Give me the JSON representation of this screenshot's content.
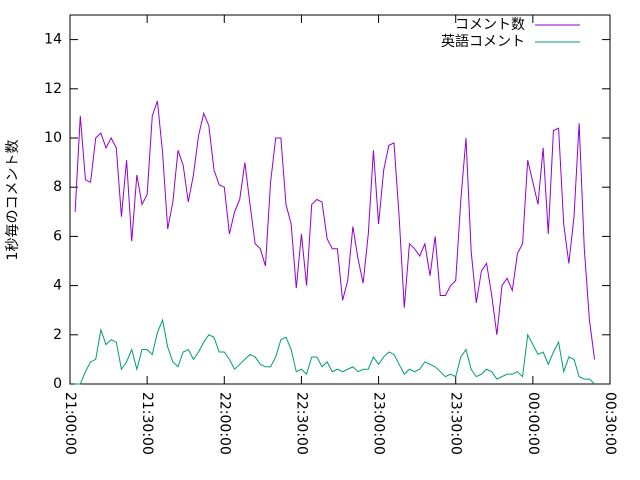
{
  "chart_data": {
    "type": "line",
    "ylabel": "1秒毎のコメント数",
    "x": [
      "21:02:00",
      "21:04:00",
      "21:06:00",
      "21:08:00",
      "21:10:00",
      "21:12:00",
      "21:14:00",
      "21:16:00",
      "21:18:00",
      "21:20:00",
      "21:22:00",
      "21:24:00",
      "21:26:00",
      "21:28:00",
      "21:30:00",
      "21:32:00",
      "21:34:00",
      "21:36:00",
      "21:38:00",
      "21:40:00",
      "21:42:00",
      "21:44:00",
      "21:46:00",
      "21:48:00",
      "21:50:00",
      "21:52:00",
      "21:54:00",
      "21:56:00",
      "21:58:00",
      "22:00:00",
      "22:02:00",
      "22:04:00",
      "22:06:00",
      "22:08:00",
      "22:10:00",
      "22:12:00",
      "22:14:00",
      "22:16:00",
      "22:18:00",
      "22:20:00",
      "22:22:00",
      "22:24:00",
      "22:26:00",
      "22:28:00",
      "22:30:00",
      "22:32:00",
      "22:34:00",
      "22:36:00",
      "22:38:00",
      "22:40:00",
      "22:42:00",
      "22:44:00",
      "22:46:00",
      "22:48:00",
      "22:50:00",
      "22:52:00",
      "22:54:00",
      "22:56:00",
      "22:58:00",
      "23:00:00",
      "23:02:00",
      "23:04:00",
      "23:06:00",
      "23:08:00",
      "23:10:00",
      "23:12:00",
      "23:14:00",
      "23:16:00",
      "23:18:00",
      "23:20:00",
      "23:22:00",
      "23:24:00",
      "23:26:00",
      "23:28:00",
      "23:30:00",
      "23:32:00",
      "23:34:00",
      "23:36:00",
      "23:38:00",
      "23:40:00",
      "23:42:00",
      "23:44:00",
      "23:46:00",
      "23:48:00",
      "23:50:00",
      "23:52:00",
      "23:54:00",
      "23:56:00",
      "23:58:00",
      "00:00:00",
      "00:02:00",
      "00:04:00",
      "00:06:00",
      "00:08:00",
      "00:10:00",
      "00:12:00",
      "00:14:00",
      "00:16:00",
      "00:18:00",
      "00:20:00",
      "00:22:00",
      "00:24:00"
    ],
    "series": [
      {
        "name": "コメント数",
        "color": "#9400d3",
        "values": [
          7,
          10.9,
          8.3,
          8.2,
          10,
          10.2,
          9.6,
          10,
          9.6,
          6.8,
          9.1,
          5.8,
          8.5,
          7.3,
          7.7,
          10.9,
          11.5,
          9.4,
          6.3,
          7.4,
          9.5,
          8.9,
          7.4,
          8.5,
          10.1,
          11,
          10.5,
          8.7,
          8.1,
          8,
          6.1,
          7,
          7.5,
          9,
          7.3,
          5.7,
          5.5,
          4.8,
          8.2,
          10,
          10,
          7.3,
          6.5,
          3.9,
          6.1,
          4.0,
          7.3,
          7.5,
          7.4,
          5.9,
          5.5,
          5.5,
          3.4,
          4.2,
          6.4,
          5.1,
          4.1,
          6.1,
          9.5,
          6.5,
          8.7,
          9.7,
          9.8,
          6.8,
          3.1,
          5.7,
          5.5,
          5.2,
          5.7,
          4.4,
          6,
          3.6,
          3.6,
          4,
          4.2,
          7.5,
          10,
          5.4,
          3.3,
          4.6,
          4.9,
          3.6,
          2.0,
          4.0,
          4.3,
          3.8,
          5.3,
          5.7,
          9.1,
          8.2,
          7.3,
          9.6,
          6.1,
          10.3,
          10.4,
          6.5,
          4.9,
          6.8,
          10.6,
          5.5,
          2.6,
          1.0
        ]
      },
      {
        "name": "英語コメント",
        "color": "#009e73",
        "values": [
          0,
          0,
          0.5,
          0.9,
          1.0,
          2.2,
          1.6,
          1.8,
          1.7,
          0.6,
          0.9,
          1.4,
          0.6,
          1.4,
          1.4,
          1.2,
          2.1,
          2.6,
          1.5,
          0.9,
          0.7,
          1.3,
          1.4,
          1.0,
          1.3,
          1.7,
          2.0,
          1.9,
          1.3,
          1.3,
          1.0,
          0.6,
          0.8,
          1.0,
          1.2,
          1.1,
          0.8,
          0.7,
          0.7,
          1.1,
          1.8,
          1.9,
          1.4,
          0.5,
          0.6,
          0.4,
          1.1,
          1.1,
          0.7,
          0.9,
          0.5,
          0.6,
          0.5,
          0.6,
          0.7,
          0.5,
          0.6,
          0.6,
          1.1,
          0.8,
          1.1,
          1.3,
          1.2,
          0.8,
          0.4,
          0.6,
          0.5,
          0.6,
          0.9,
          0.8,
          0.7,
          0.5,
          0.3,
          0.4,
          0.3,
          1.1,
          1.4,
          0.6,
          0.3,
          0.4,
          0.6,
          0.5,
          0.2,
          0.3,
          0.4,
          0.4,
          0.5,
          0.3,
          2.0,
          1.6,
          1.2,
          1.3,
          0.8,
          1.3,
          1.7,
          0.5,
          1.1,
          1.0,
          0.3,
          0.2,
          0.2,
          0.0
        ]
      }
    ],
    "xlim": [
      "21:00:00",
      "00:30:00"
    ],
    "xticks": [
      "21:00:00",
      "21:30:00",
      "22:00:00",
      "22:30:00",
      "23:00:00",
      "23:30:00",
      "00:00:00",
      "00:30:00"
    ],
    "ylim": [
      0,
      15
    ],
    "yticks": [
      0,
      2,
      4,
      6,
      8,
      10,
      12,
      14
    ],
    "legend": "top-right"
  }
}
